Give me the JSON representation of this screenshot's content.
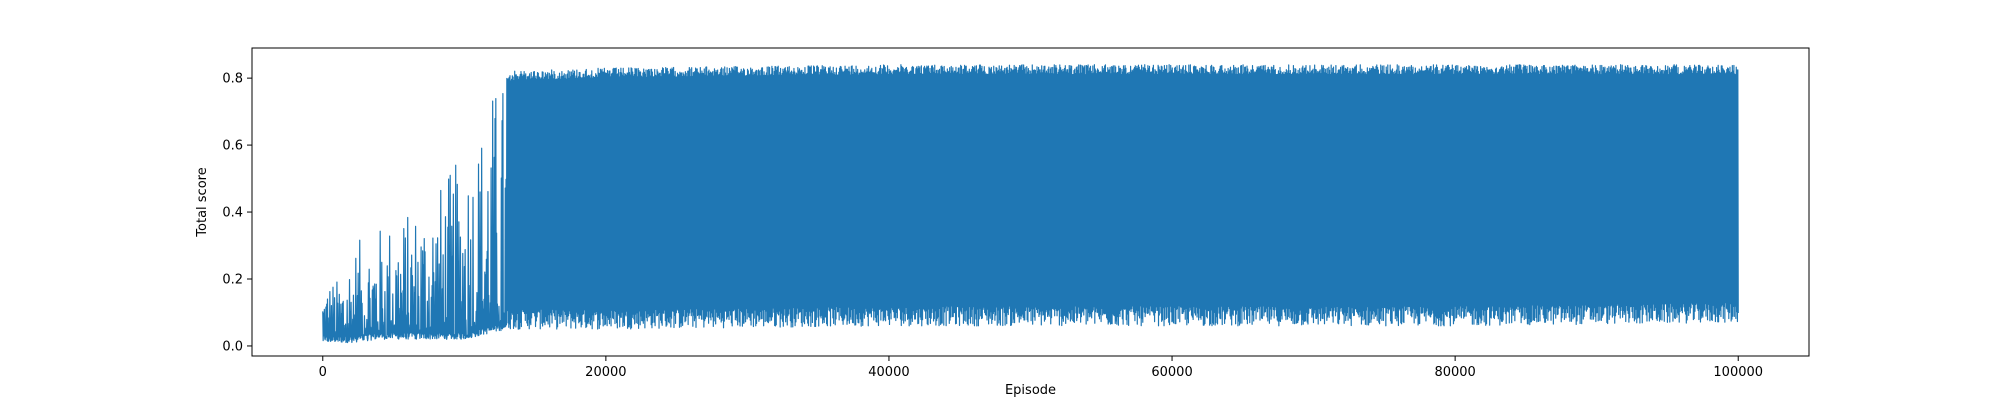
{
  "chart_data": {
    "type": "line",
    "title": "",
    "xlabel": "Episode",
    "ylabel": "Total score",
    "xlim": [
      -5000,
      105000
    ],
    "ylim": [
      -0.03,
      0.89
    ],
    "x_ticks": [
      0,
      20000,
      40000,
      60000,
      80000,
      100000
    ],
    "x_tick_labels": [
      "0",
      "20000",
      "40000",
      "60000",
      "80000",
      "100000"
    ],
    "y_ticks": [
      0.0,
      0.2,
      0.4,
      0.6,
      0.8
    ],
    "y_tick_labels": [
      "0.0",
      "0.2",
      "0.4",
      "0.6",
      "0.8"
    ],
    "grid": false,
    "legend": "none",
    "series": [
      {
        "color": "#1f77b4",
        "description_points": [
          {
            "x": 0,
            "upper": 0.21,
            "lower": 0.01
          },
          {
            "x": 1000,
            "upper": 0.2,
            "lower": 0.01
          },
          {
            "x": 2000,
            "upper": 0.3,
            "lower": 0.01
          },
          {
            "x": 4000,
            "upper": 0.36,
            "lower": 0.02
          },
          {
            "x": 6000,
            "upper": 0.4,
            "lower": 0.02
          },
          {
            "x": 8000,
            "upper": 0.47,
            "lower": 0.02
          },
          {
            "x": 10000,
            "upper": 0.58,
            "lower": 0.02
          },
          {
            "x": 11000,
            "upper": 0.65,
            "lower": 0.03
          },
          {
            "x": 12000,
            "upper": 0.78,
            "lower": 0.04
          },
          {
            "x": 13000,
            "upper": 0.82,
            "lower": 0.05
          },
          {
            "x": 20000,
            "upper": 0.83,
            "lower": 0.05
          },
          {
            "x": 40000,
            "upper": 0.84,
            "lower": 0.06
          },
          {
            "x": 60000,
            "upper": 0.84,
            "lower": 0.06
          },
          {
            "x": 80000,
            "upper": 0.84,
            "lower": 0.06
          },
          {
            "x": 100000,
            "upper": 0.84,
            "lower": 0.07
          }
        ]
      }
    ]
  }
}
